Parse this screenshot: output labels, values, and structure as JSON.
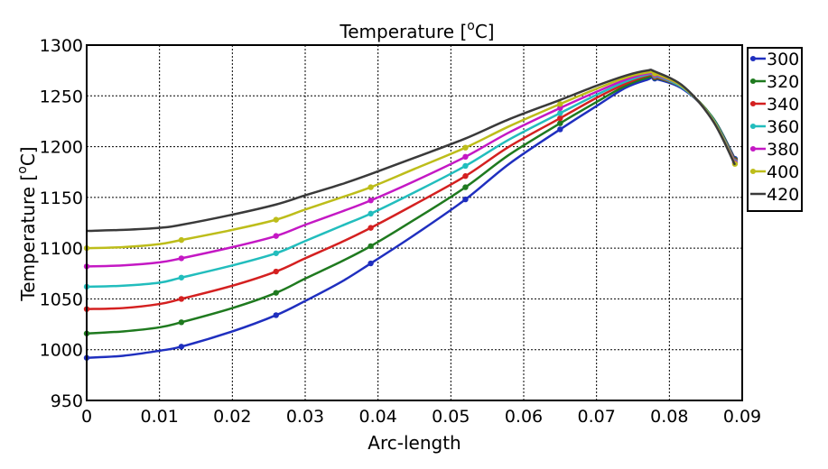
{
  "chart_data": {
    "type": "line",
    "title": "Temperature [",
    "title_unit": "C]",
    "title_sup": "o",
    "xlabel": "Arc-length",
    "ylabel": "Temperature [",
    "ylabel_unit": "C]",
    "ylabel_sup": "o",
    "xlim": [
      0,
      0.09
    ],
    "ylim": [
      950,
      1300
    ],
    "xticks": [
      "0",
      "0.01",
      "0.02",
      "0.03",
      "0.04",
      "0.05",
      "0.06",
      "0.07",
      "0.08",
      "0.09"
    ],
    "yticks": [
      "950",
      "1000",
      "1050",
      "1100",
      "1150",
      "1200",
      "1250",
      "1300"
    ],
    "grid": true,
    "legend_position": "right-top-outside",
    "x": [
      0,
      0.005,
      0.01,
      0.013,
      0.02,
      0.026,
      0.03,
      0.035,
      0.039,
      0.045,
      0.052,
      0.058,
      0.065,
      0.07,
      0.074,
      0.077,
      0.078,
      0.082,
      0.086,
      0.089
    ],
    "marker_x": [
      0,
      0.013,
      0.026,
      0.039,
      0.052,
      0.065,
      0.078,
      0.089
    ],
    "series": [
      {
        "name": "300",
        "color": "#1f2fbf",
        "markers": true,
        "values": [
          992,
          994,
          999,
          1003,
          1018,
          1034,
          1048,
          1067,
          1085,
          1113,
          1148,
          1183,
          1217,
          1240,
          1258,
          1266,
          1267,
          1256,
          1228,
          1188
        ]
      },
      {
        "name": "320",
        "color": "#1f7a1f",
        "markers": true,
        "values": [
          1016,
          1018,
          1022,
          1027,
          1041,
          1056,
          1070,
          1087,
          1102,
          1128,
          1160,
          1192,
          1223,
          1244,
          1260,
          1268,
          1268,
          1257,
          1228,
          1187
        ]
      },
      {
        "name": "340",
        "color": "#d42020",
        "markers": true,
        "values": [
          1040,
          1041,
          1045,
          1050,
          1063,
          1077,
          1090,
          1106,
          1120,
          1143,
          1171,
          1200,
          1228,
          1248,
          1262,
          1270,
          1269,
          1257,
          1227,
          1186
        ]
      },
      {
        "name": "360",
        "color": "#22bdbd",
        "markers": true,
        "values": [
          1062,
          1063,
          1066,
          1071,
          1083,
          1095,
          1107,
          1122,
          1134,
          1155,
          1181,
          1207,
          1233,
          1251,
          1264,
          1271,
          1270,
          1257,
          1227,
          1185
        ]
      },
      {
        "name": "380",
        "color": "#c418c4",
        "markers": true,
        "values": [
          1082,
          1083,
          1086,
          1090,
          1101,
          1112,
          1123,
          1136,
          1147,
          1166,
          1190,
          1214,
          1238,
          1254,
          1266,
          1272,
          1271,
          1258,
          1226,
          1184
        ]
      },
      {
        "name": "400",
        "color": "#bdbd1a",
        "markers": true,
        "values": [
          1100,
          1101,
          1104,
          1108,
          1118,
          1128,
          1138,
          1150,
          1160,
          1178,
          1199,
          1220,
          1242,
          1257,
          1268,
          1273,
          1272,
          1258,
          1226,
          1183
        ]
      },
      {
        "name": "420",
        "color": "#3a3a3a",
        "markers": false,
        "values": [
          1117,
          1118,
          1120,
          1123,
          1133,
          1143,
          1152,
          1163,
          1173,
          1189,
          1208,
          1227,
          1246,
          1260,
          1270,
          1275,
          1274,
          1259,
          1225,
          1182
        ]
      }
    ]
  }
}
